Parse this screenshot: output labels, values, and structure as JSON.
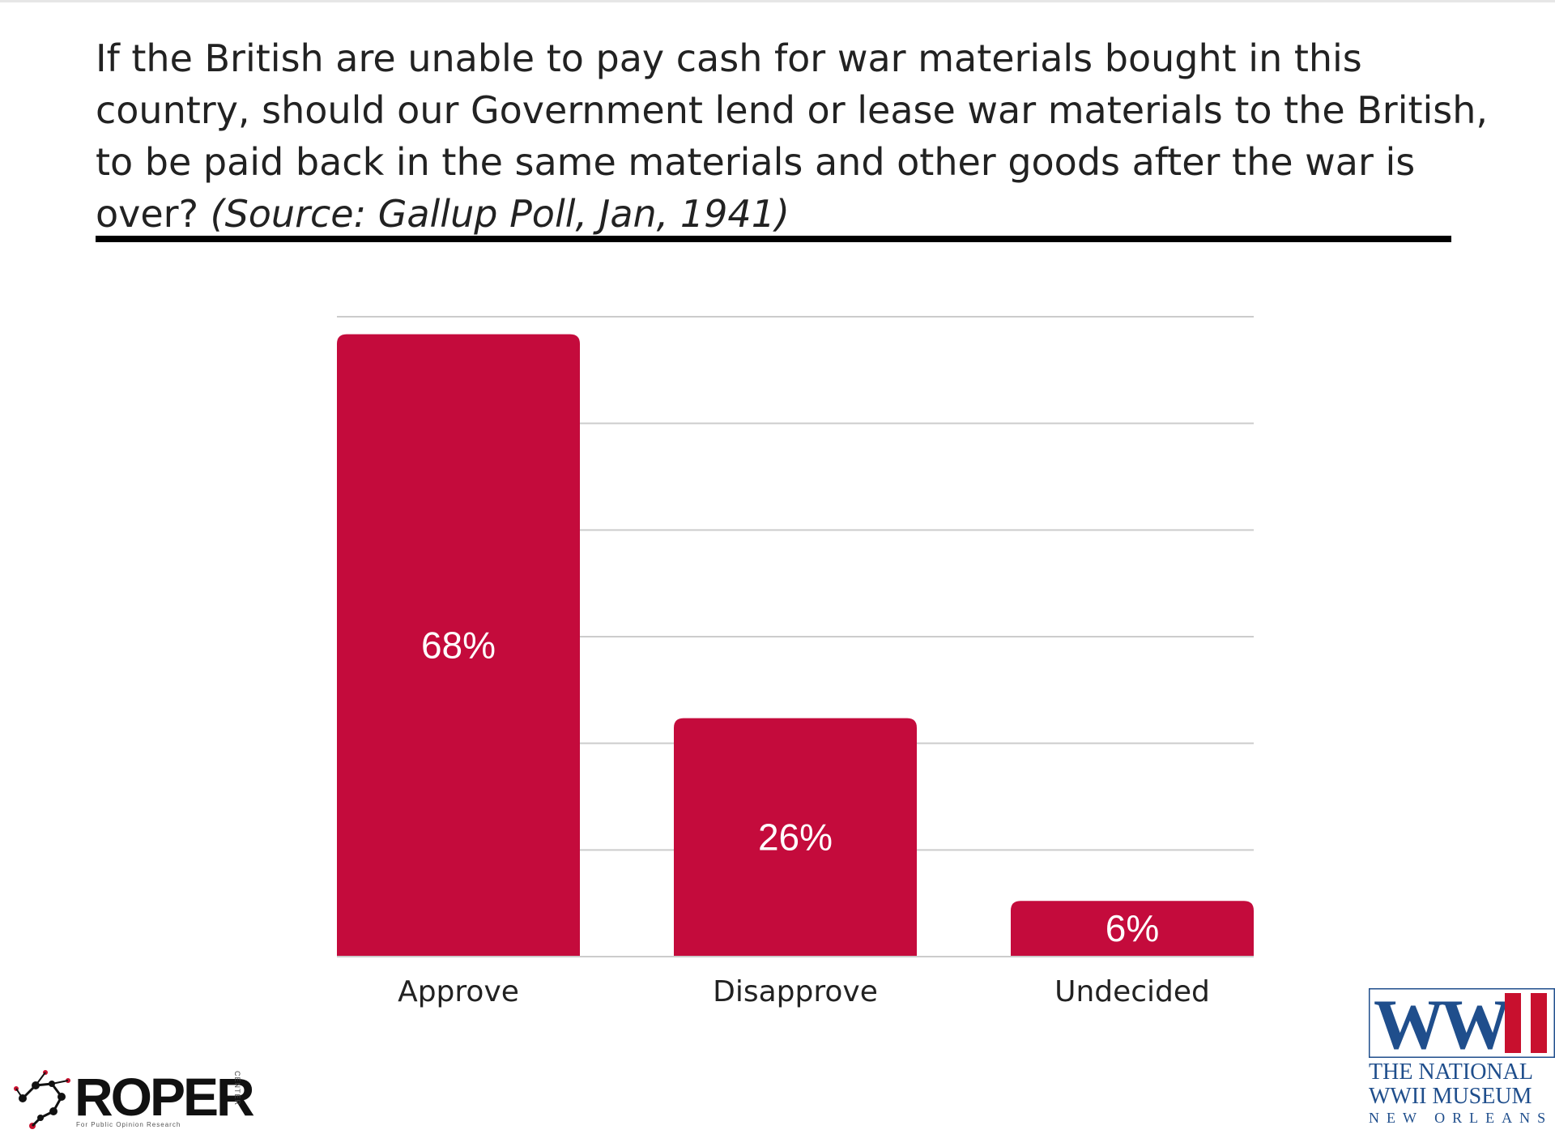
{
  "question": {
    "text": "If the British are unable to pay cash for war materials bought in this country, should our Government lend or lease war materials to the British, to be paid back in the same materials and other goods after the war is over?",
    "source": "(Source: Gallup Poll, Jan, 1941)"
  },
  "chart_data": {
    "type": "bar",
    "categories": [
      "Approve",
      "Disapprove",
      "Undecided"
    ],
    "values": [
      68,
      26,
      6
    ],
    "data_labels": [
      "68%",
      "26%",
      "6%"
    ],
    "ylim": [
      0,
      70
    ],
    "grid": true,
    "bar_color": "#c40b3c",
    "label_color": "#ffffff",
    "gridline_color": "#cccccc"
  },
  "logos": {
    "roper": {
      "name": "ROPER",
      "side_text": "CENTER",
      "subtitle": "For Public Opinion Research"
    },
    "museum": {
      "mark": "WWII",
      "line1": "THE NATIONAL",
      "line2": "WWII MUSEUM",
      "line3": "NEW ORLEANS",
      "colors": {
        "blue": "#1f4e8c",
        "red": "#c8102e"
      }
    }
  }
}
